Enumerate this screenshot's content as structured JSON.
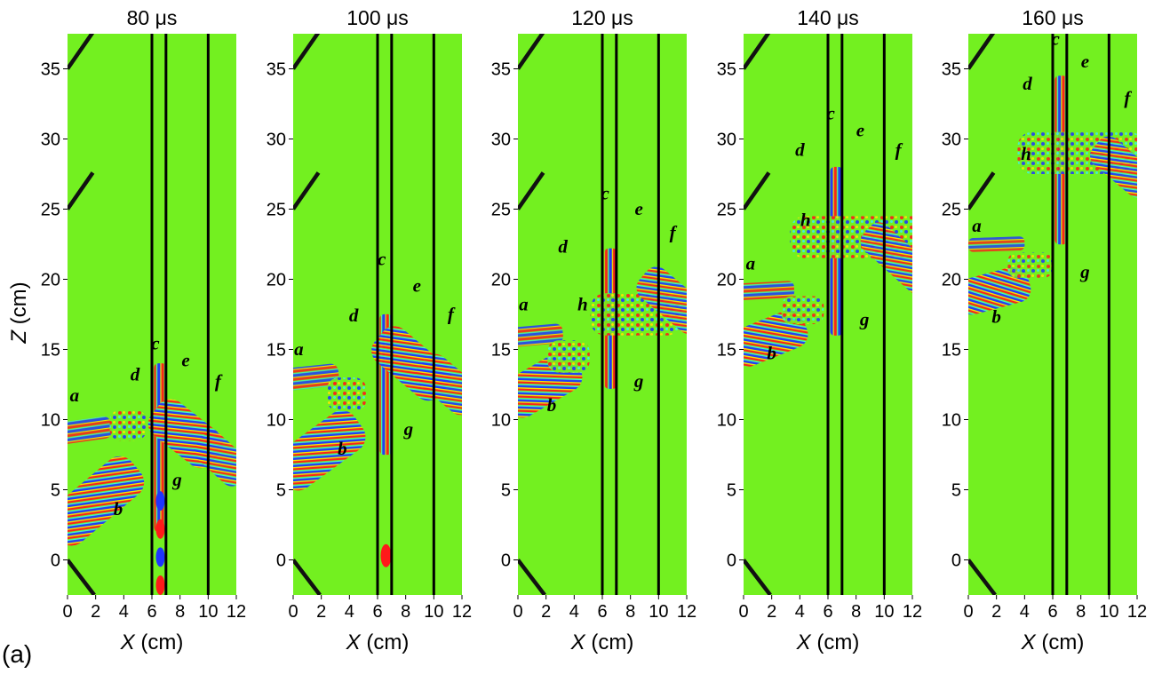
{
  "figure_label": "(a)",
  "colors": {
    "background_field": "#73f020",
    "wave_red": "#ff1a1a",
    "wave_blue": "#1f35ff",
    "wave_yellow": "#ffe600",
    "wave_cyan": "#40f0e0",
    "line": "#000000"
  },
  "axes": {
    "x_label_var": "X",
    "x_label_unit": " (cm)",
    "y_label_var": "Z",
    "y_label_unit": " (cm)",
    "x_ticks": [
      "0",
      "2",
      "4",
      "6",
      "8",
      "10",
      "12"
    ],
    "x_tick_values": [
      0,
      2,
      4,
      6,
      8,
      10,
      12
    ],
    "y_ticks": [
      "0",
      "5",
      "10",
      "15",
      "20",
      "25",
      "30",
      "35"
    ],
    "y_tick_values": [
      0,
      5,
      10,
      15,
      20,
      25,
      30,
      35
    ],
    "x_range": [
      0,
      12
    ],
    "y_range": [
      -2.5,
      37.5
    ],
    "vertical_lines_x": [
      6,
      7,
      10
    ]
  },
  "panels": [
    {
      "title": "80 μs",
      "labels": [
        {
          "text": "a",
          "x": 0.5,
          "z": 11.3
        },
        {
          "text": "b",
          "x": 3.6,
          "z": 3.2
        },
        {
          "text": "c",
          "x": 6.25,
          "z": 15.0
        },
        {
          "text": "d",
          "x": 4.8,
          "z": 12.8
        },
        {
          "text": "e",
          "x": 8.4,
          "z": 13.8
        },
        {
          "text": "f",
          "x": 10.7,
          "z": 12.3
        },
        {
          "text": "g",
          "x": 7.8,
          "z": 5.3
        }
      ]
    },
    {
      "title": "100 μs",
      "labels": [
        {
          "text": "a",
          "x": 0.4,
          "z": 14.6
        },
        {
          "text": "b",
          "x": 3.5,
          "z": 7.5
        },
        {
          "text": "c",
          "x": 6.3,
          "z": 21.0
        },
        {
          "text": "d",
          "x": 4.3,
          "z": 17.0
        },
        {
          "text": "e",
          "x": 8.8,
          "z": 19.1
        },
        {
          "text": "f",
          "x": 11.2,
          "z": 17.1
        },
        {
          "text": "g",
          "x": 8.2,
          "z": 8.9
        }
      ]
    },
    {
      "title": "120 μs",
      "labels": [
        {
          "text": "a",
          "x": 0.4,
          "z": 17.8
        },
        {
          "text": "b",
          "x": 2.4,
          "z": 10.6
        },
        {
          "text": "c",
          "x": 6.2,
          "z": 25.7
        },
        {
          "text": "d",
          "x": 3.2,
          "z": 21.9
        },
        {
          "text": "e",
          "x": 8.6,
          "z": 24.6
        },
        {
          "text": "f",
          "x": 11.0,
          "z": 22.9
        },
        {
          "text": "g",
          "x": 8.6,
          "z": 12.3
        },
        {
          "text": "h",
          "x": 4.6,
          "z": 17.8
        }
      ]
    },
    {
      "title": "140 μs",
      "labels": [
        {
          "text": "a",
          "x": 0.5,
          "z": 20.7
        },
        {
          "text": "b",
          "x": 2.0,
          "z": 14.3
        },
        {
          "text": "c",
          "x": 6.2,
          "z": 31.4
        },
        {
          "text": "d",
          "x": 4.0,
          "z": 28.8
        },
        {
          "text": "e",
          "x": 8.3,
          "z": 30.2
        },
        {
          "text": "f",
          "x": 11.0,
          "z": 28.8
        },
        {
          "text": "g",
          "x": 8.6,
          "z": 16.7
        },
        {
          "text": "h",
          "x": 4.4,
          "z": 23.8
        }
      ]
    },
    {
      "title": "160 μs",
      "labels": [
        {
          "text": "a",
          "x": 0.6,
          "z": 23.4
        },
        {
          "text": "b",
          "x": 2.0,
          "z": 16.9
        },
        {
          "text": "c",
          "x": 6.2,
          "z": 36.7
        },
        {
          "text": "d",
          "x": 4.2,
          "z": 33.5
        },
        {
          "text": "e",
          "x": 8.3,
          "z": 35.1
        },
        {
          "text": "f",
          "x": 11.3,
          "z": 32.5
        },
        {
          "text": "g",
          "x": 8.3,
          "z": 20.1
        },
        {
          "text": "h",
          "x": 4.1,
          "z": 28.5
        }
      ]
    }
  ]
}
